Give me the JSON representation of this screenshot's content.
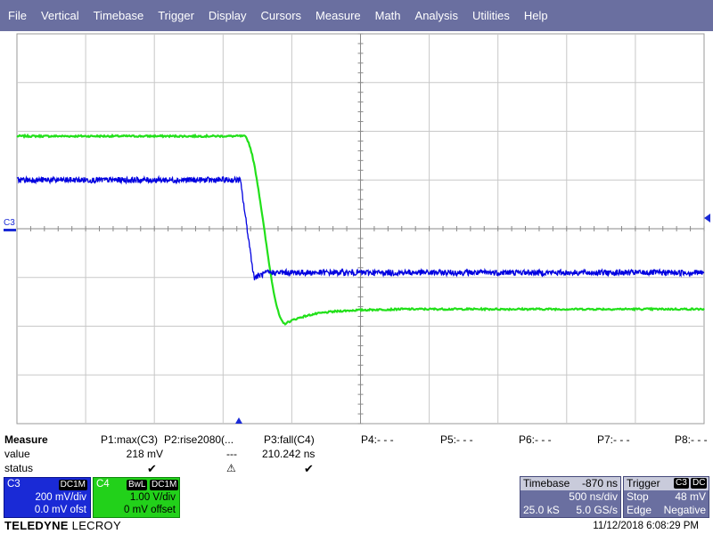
{
  "menu": [
    "File",
    "Vertical",
    "Timebase",
    "Trigger",
    "Display",
    "Cursors",
    "Measure",
    "Math",
    "Analysis",
    "Utilities",
    "Help"
  ],
  "grid": {
    "divisions_x": 10,
    "divisions_y": 8
  },
  "markers": {
    "c3_level_label": "C3"
  },
  "traces": {
    "c3": {
      "color": "#0000e0",
      "high_level_div": 1.0,
      "low_level_div": -0.9,
      "edge_x_div": 3.25
    },
    "c4": {
      "color": "#22e01a",
      "high_level_div": 1.9,
      "low_level_div": -1.65,
      "edge_x_div": 3.3
    }
  },
  "measure": {
    "header": "Measure",
    "row_labels": [
      "value",
      "status"
    ],
    "params": [
      {
        "name": "P1:max(C3)",
        "value": "218 mV",
        "status": "ok"
      },
      {
        "name": "P2:rise2080(...",
        "value": "---",
        "status": "warn"
      },
      {
        "name": "P3:fall(C4)",
        "value": "210.242 ns",
        "status": "ok"
      },
      {
        "name": "P4:- - -",
        "value": "",
        "status": ""
      },
      {
        "name": "P5:- - -",
        "value": "",
        "status": ""
      },
      {
        "name": "P6:- - -",
        "value": "",
        "status": ""
      },
      {
        "name": "P7:- - -",
        "value": "",
        "status": ""
      },
      {
        "name": "P8:- - -",
        "value": "",
        "status": ""
      }
    ],
    "check_glyph": "✔",
    "warn_glyph": "⚠"
  },
  "c3": {
    "label": "C3",
    "tag": "DC1M",
    "vdiv": "200 mV/div",
    "offset": "0.0 mV ofst",
    "color": "#1a2ad6"
  },
  "c4": {
    "label": "C4",
    "tag1": "BwL",
    "tag2": "DC1M",
    "vdiv": "1.00 V/div",
    "offset": "0 mV offset",
    "color": "#22d11a"
  },
  "timebase": {
    "title": "Timebase",
    "delay": "-870 ns",
    "tdiv": "500 ns/div",
    "samples": "25.0 kS",
    "rate": "5.0 GS/s"
  },
  "trigger": {
    "title": "Trigger",
    "source": "C3",
    "coupling": "DC",
    "mode": "Stop",
    "level": "48 mV",
    "type": "Edge",
    "slope": "Negative"
  },
  "footer": {
    "brand_bold": "TELEDYNE",
    "brand_light": "LECROY",
    "datetime": "11/12/2018 6:08:29 PM"
  }
}
